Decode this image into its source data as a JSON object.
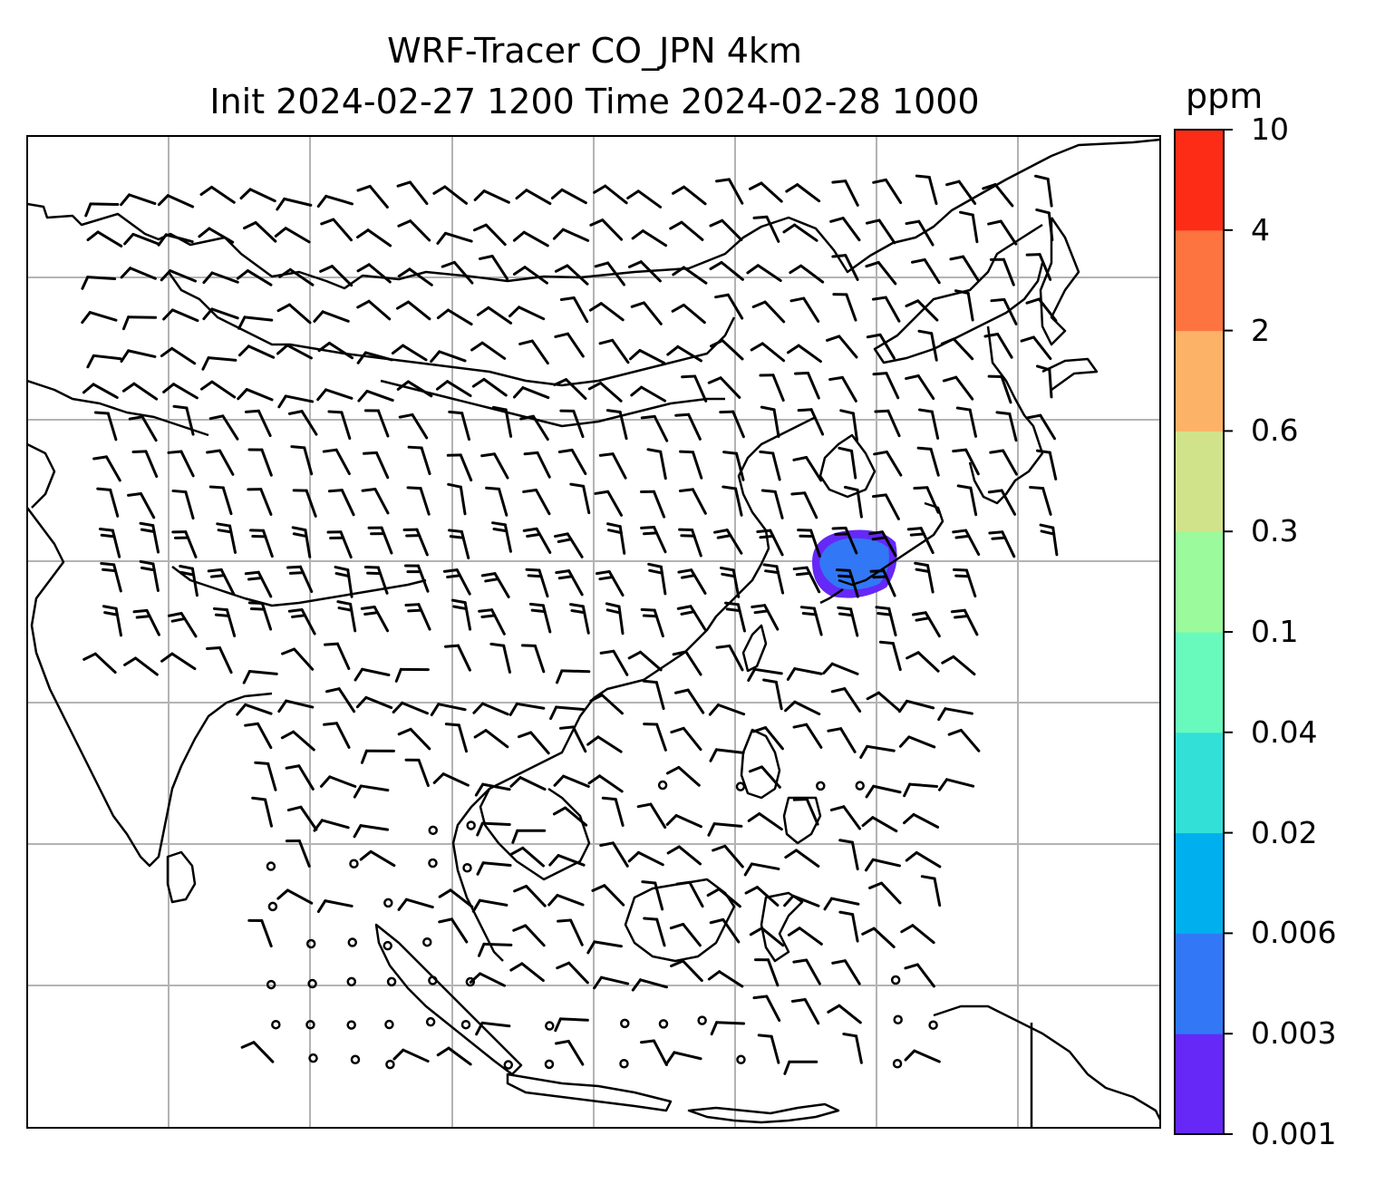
{
  "header": {
    "title_line1": "WRF-Tracer CO_JPN 4km",
    "title_line2": "Init 2024-02-27 1200 Time 2024-02-28 1000"
  },
  "colorbar": {
    "unit": "ppm",
    "levels": [
      "0.001",
      "0.003",
      "0.006",
      "0.02",
      "0.04",
      "0.1",
      "0.3",
      "0.6",
      "2",
      "4",
      "10"
    ],
    "colors": [
      "#6528f7",
      "#3277f6",
      "#00b0ee",
      "#33e0d8",
      "#68fabc",
      "#9afa9c",
      "#d1e38a",
      "#fcb267",
      "#fd7440",
      "#fd2c17"
    ]
  },
  "map": {
    "plume_colors": {
      "outer": "#6528f7",
      "inner": "#3277f6"
    },
    "grid_color": "#b3b3b3",
    "coast_color": "#000000"
  }
}
